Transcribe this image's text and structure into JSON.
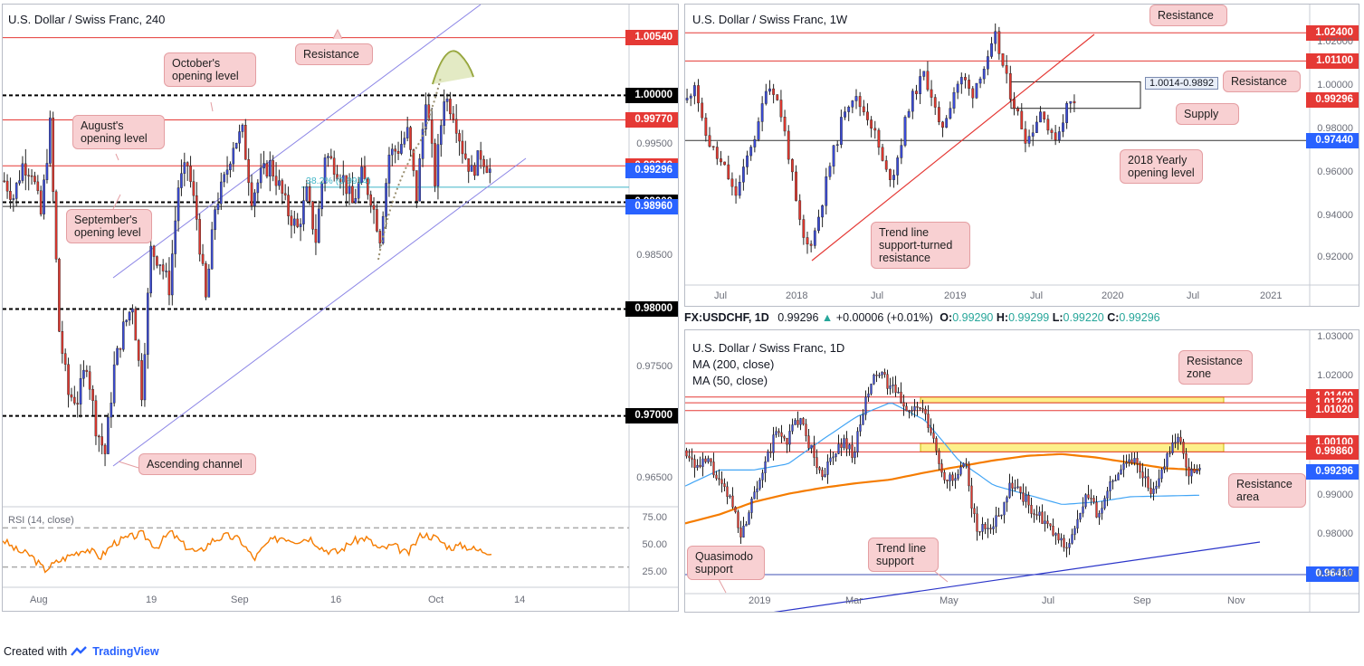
{
  "footer": {
    "created_with": "Created with",
    "brand": "TradingView"
  },
  "panel_h4": {
    "title": "U.S. Dollar / Swiss Franc, 240",
    "price_labels": [
      {
        "text": "1.00540",
        "color": "#e53935"
      },
      {
        "text": "1.00000",
        "color": "#000000"
      },
      {
        "text": "0.99770",
        "color": "#e53935"
      },
      {
        "text": "0.99340",
        "color": "#e53935"
      },
      {
        "text": "0.99296",
        "color": "#2962ff"
      },
      {
        "text": "0.99000",
        "color": "#000000"
      },
      {
        "text": "0.98960",
        "color": "#2962ff"
      },
      {
        "text": "0.98000",
        "color": "#000000"
      },
      {
        "text": "0.97000",
        "color": "#000000"
      }
    ],
    "ticks": [
      "0.99500",
      "0.98500",
      "0.97500",
      "0.96500"
    ],
    "callouts": {
      "resistance": "Resistance",
      "october": "October's opening level",
      "august": "August's opening level",
      "september": "September's opening level",
      "channel": "Ascending channel"
    },
    "fib_label": "38.2% (0.9914)",
    "x_labels": [
      "Aug",
      "19",
      "Sep",
      "16",
      "Oct",
      "14"
    ],
    "rsi": {
      "label": "RSI (14, close)",
      "ticks": [
        "75.00",
        "50.00",
        "25.00"
      ]
    }
  },
  "panel_w": {
    "title": "U.S. Dollar / Swiss Franc, 1W",
    "price_labels": [
      {
        "text": "1.02400",
        "color": "#e53935"
      },
      {
        "text": "1.01100",
        "color": "#e53935"
      },
      {
        "text": "0.99296",
        "color": "#e53935"
      },
      {
        "text": "0.97440",
        "color": "#2962ff"
      }
    ],
    "ticks": [
      "1.02000",
      "1.00000",
      "0.98000",
      "0.96000",
      "0.94000",
      "0.92000"
    ],
    "callouts": {
      "resistance_top": "Resistance",
      "resistance": "Resistance",
      "supply": "Supply",
      "yearly": "2018 Yearly opening level",
      "trendline": "Trend line support-turned resistance"
    },
    "supply_box_label": "1.0014-0.9892",
    "x_labels": [
      "Jul",
      "2018",
      "Jul",
      "2019",
      "Jul",
      "2020",
      "Jul",
      "2021"
    ]
  },
  "infobar": {
    "symbol": "FX:USDCHF, 1D",
    "last": "0.99296",
    "change": "+0.00006 (+0.01%)",
    "o_label": "O:",
    "o": "0.99290",
    "h_label": "H:",
    "h": "0.99299",
    "l_label": "L:",
    "l": "0.99220",
    "c_label": "C:",
    "c": "0.99296"
  },
  "panel_d": {
    "title": "U.S. Dollar / Swiss Franc, 1D",
    "ma200": "MA (200, close)",
    "ma50": "MA (50, close)",
    "price_labels": [
      {
        "text": "1.01400",
        "color": "#e53935"
      },
      {
        "text": "1.01240",
        "color": "#e53935"
      },
      {
        "text": "1.01020",
        "color": "#e53935"
      },
      {
        "text": "1.00100",
        "color": "#e53935"
      },
      {
        "text": "0.99860",
        "color": "#e53935"
      },
      {
        "text": "0.99296",
        "color": "#2962ff"
      },
      {
        "text": "0.96410",
        "color": "#2962ff"
      }
    ],
    "ticks": [
      "1.03000",
      "1.02000",
      "0.99000",
      "0.98000",
      "0.97000"
    ],
    "callouts": {
      "res_zone": "Resistance zone",
      "res_area": "Resistance area",
      "quasimodo": "Quasimodo support",
      "trendline": "Trend line support"
    },
    "x_labels": [
      "2019",
      "Mar",
      "May",
      "Jul",
      "Sep",
      "Nov"
    ]
  },
  "chart_data": [
    {
      "type": "candlestick",
      "title": "U.S. Dollar / Swiss Franc, 240",
      "ylim": [
        0.9615,
        1.0085
      ],
      "horizontal_levels": [
        1.0054,
        1.0,
        0.9977,
        0.9934,
        0.99296,
        0.99,
        0.9896,
        0.98,
        0.97
      ],
      "fib": {
        "label": "38.2%",
        "value": 0.9914
      },
      "close_path": [
        0.992,
        0.9905,
        0.9935,
        0.993,
        0.9888,
        0.9972,
        0.978,
        0.972,
        0.9715,
        0.975,
        0.969,
        0.9665,
        0.9745,
        0.9782,
        0.9805,
        0.9722,
        0.9855,
        0.9845,
        0.982,
        0.9915,
        0.9935,
        0.9885,
        0.9808,
        0.9895,
        0.992,
        0.9955,
        0.9965,
        0.9905,
        0.9925,
        0.9935,
        0.9915,
        0.989,
        0.9875,
        0.9908,
        0.9865,
        0.9945,
        0.9935,
        0.9922,
        0.9898,
        0.9925,
        0.9905,
        0.9868,
        0.9945,
        0.995,
        0.9965,
        0.9905,
        1.0,
        0.992,
        1.0,
        0.9985,
        0.995,
        0.9928,
        0.9945,
        0.993
      ],
      "rsi": {
        "ylim": [
          12,
          88
        ],
        "levels": [
          70,
          30
        ],
        "values": [
          58,
          47,
          42,
          27,
          36,
          43,
          49,
          40,
          55,
          60,
          64,
          50,
          66,
          52,
          44,
          57,
          62,
          58,
          38,
          55,
          61,
          57,
          60,
          48,
          45,
          56,
          60,
          48,
          52,
          43,
          64,
          60,
          50,
          52,
          47,
          46
        ]
      }
    },
    {
      "type": "candlestick",
      "title": "U.S. Dollar / Swiss Franc, 1W",
      "ylim": [
        0.912,
        1.032
      ],
      "horizontal_levels": [
        1.024,
        1.011,
        0.99296,
        0.9744
      ],
      "supply_zone": [
        1.0014,
        0.9892
      ],
      "x_labels": [
        "Jul",
        "2018",
        "Jul",
        "2019",
        "Jul",
        "2020",
        "Jul",
        "2021"
      ],
      "close_path": [
        0.993,
        1.002,
        0.98,
        0.972,
        0.965,
        0.96,
        0.948,
        0.958,
        0.972,
        0.98,
        1.0,
        0.998,
        0.985,
        0.965,
        0.94,
        0.925,
        0.93,
        0.945,
        0.962,
        0.975,
        0.99,
        0.995,
        0.99,
        0.985,
        0.975,
        0.96,
        0.958,
        0.972,
        0.99,
        0.998,
        1.005,
        0.995,
        0.978,
        0.988,
        1.0,
        1.003,
        0.995,
        1.005,
        1.01,
        1.022,
        1.008,
        0.995,
        0.985,
        0.974,
        0.982,
        0.99,
        0.975,
        0.978,
        0.99,
        0.993
      ]
    },
    {
      "type": "candlestick",
      "title": "U.S. Dollar / Swiss Franc, 1D",
      "ylim": [
        0.9585,
        1.0315
      ],
      "horizontal_levels": [
        1.014,
        1.0124,
        1.0102,
        1.001,
        0.9986,
        0.99296,
        0.9641
      ],
      "zones": [
        [
          1.014,
          1.0124
        ],
        [
          1.001,
          0.9986
        ]
      ],
      "series": [
        {
          "name": "MA (200, close)",
          "values": [
            0.9785,
            0.981,
            0.9845,
            0.9868,
            0.9885,
            0.9898,
            0.9908,
            0.9928,
            0.9945,
            0.9962,
            0.9975,
            0.998,
            0.997,
            0.9955,
            0.994,
            0.9935
          ]
        },
        {
          "name": "MA (50, close)",
          "values": [
            0.989,
            0.9935,
            0.9935,
            0.9952,
            1.002,
            1.0085,
            1.0125,
            1.0075,
            0.996,
            0.9892,
            0.9865,
            0.9838,
            0.9845,
            0.986,
            0.9862,
            0.9864
          ]
        }
      ],
      "close_path": [
        0.999,
        0.994,
        0.996,
        0.989,
        0.985,
        0.975,
        0.988,
        0.994,
        1.004,
        1.002,
        1.008,
        1.001,
        0.992,
        0.996,
        1.002,
        0.998,
        1.012,
        1.021,
        1.018,
        1.014,
        1.01,
        1.011,
        1.003,
        0.992,
        0.99,
        0.995,
        0.976,
        0.978,
        0.98,
        0.99,
        0.987,
        0.982,
        0.979,
        0.975,
        0.972,
        0.978,
        0.987,
        0.98,
        0.99,
        0.995,
        0.997,
        0.992,
        0.986,
        0.998,
        1.003,
        0.993,
        0.993
      ]
    }
  ]
}
